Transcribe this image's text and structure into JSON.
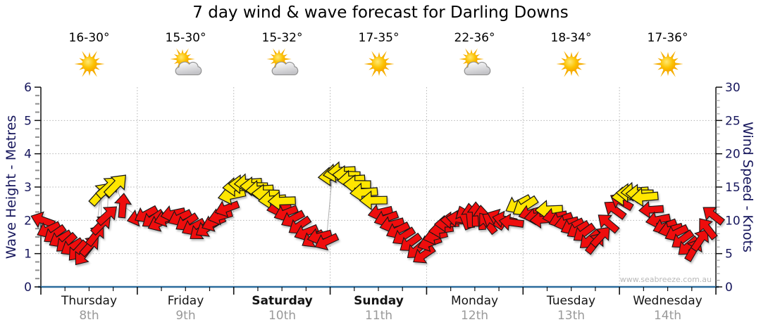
{
  "title": "7 day wind & wave forecast for Darling Downs",
  "watermark": "www.seabreeze.com.au",
  "days": [
    {
      "name": "Thursday",
      "date": "8th",
      "temp": "16-30°",
      "icon": "sunny",
      "bold": false
    },
    {
      "name": "Friday",
      "date": "9th",
      "temp": "15-30°",
      "icon": "partly-cloudy",
      "bold": false
    },
    {
      "name": "Saturday",
      "date": "10th",
      "temp": "15-32°",
      "icon": "partly-cloudy",
      "bold": true
    },
    {
      "name": "Sunday",
      "date": "11th",
      "temp": "17-35°",
      "icon": "sunny",
      "bold": true
    },
    {
      "name": "Monday",
      "date": "12th",
      "temp": "22-36°",
      "icon": "partly-cloudy",
      "bold": false
    },
    {
      "name": "Tuesday",
      "date": "13th",
      "temp": "18-34°",
      "icon": "sunny",
      "bold": false
    },
    {
      "name": "Wednesday",
      "date": "14th",
      "temp": "17-36°",
      "icon": "sunny",
      "bold": false
    }
  ],
  "chart_data": {
    "type": "scatter",
    "subtype": "wind-direction-arrows",
    "title": "7 day wind & wave forecast for Darling Downs",
    "categories": [
      "Thursday 8th",
      "Friday 9th",
      "Saturday 10th",
      "Sunday 11th",
      "Monday 12th",
      "Tuesday 13th",
      "Wednesday 14th"
    ],
    "left_axis": {
      "label": "Wave Height - Metres",
      "min": 0,
      "max": 6,
      "major_tick": 1,
      "minor_tick": 0.25
    },
    "right_axis": {
      "label": "Wind Speed - Knots",
      "min": 0,
      "max": 30,
      "major_tick": 5,
      "minor_tick": 1
    },
    "grid": {
      "style": "dotted",
      "horizontal_lines_metres": [
        1,
        2,
        3,
        4,
        5
      ],
      "vertical_lines_at_day_boundaries": true
    },
    "x_minor_ticks_per_day": 4,
    "legend": null,
    "colors": {
      "light_wind_arrow": "#ee1111",
      "strong_wind_arrow": "#ffe600",
      "arrow_outline": "#141414",
      "axis_text": "#16165c",
      "axis_line": "#111111",
      "x_axis_line": "#2a6b9c",
      "grid_line": "#b3b3b3",
      "minor_tick": "#8f8f8f",
      "connector_line": "#b0b0b0"
    },
    "point_format": [
      "day_index",
      "time_fraction_of_day",
      "wind_speed_knots",
      "direction_deg_ccw_from_east",
      "strength_r_light_y_strong"
    ],
    "points": [
      [
        0,
        0.02,
        10.0,
        160,
        "r"
      ],
      [
        0,
        0.08,
        8.6,
        205,
        "r"
      ],
      [
        0,
        0.14,
        7.9,
        215,
        "r"
      ],
      [
        0,
        0.2,
        7.2,
        210,
        "r"
      ],
      [
        0,
        0.26,
        6.6,
        222,
        "r"
      ],
      [
        0,
        0.32,
        6.0,
        212,
        "r"
      ],
      [
        0,
        0.38,
        5.4,
        228,
        "r"
      ],
      [
        0,
        0.44,
        4.8,
        232,
        "r"
      ],
      [
        0,
        0.51,
        6.2,
        48,
        "r"
      ],
      [
        0,
        0.57,
        7.8,
        52,
        "r"
      ],
      [
        0,
        0.62,
        14.0,
        48,
        "y"
      ],
      [
        0,
        0.63,
        9.4,
        45,
        "r"
      ],
      [
        0,
        0.69,
        10.8,
        42,
        "r"
      ],
      [
        0,
        0.7,
        15.0,
        42,
        "y"
      ],
      [
        0,
        0.78,
        15.3,
        46,
        "y"
      ],
      [
        0,
        0.85,
        12.2,
        85,
        "r"
      ],
      [
        1,
        0.02,
        10.4,
        195,
        "r"
      ],
      [
        1,
        0.09,
        10.9,
        208,
        "r"
      ],
      [
        1,
        0.16,
        10.2,
        215,
        "r"
      ],
      [
        1,
        0.23,
        9.6,
        205,
        "r"
      ],
      [
        1,
        0.3,
        10.3,
        198,
        "r"
      ],
      [
        1,
        0.37,
        11.0,
        192,
        "r"
      ],
      [
        1,
        0.44,
        10.4,
        205,
        "r"
      ],
      [
        1,
        0.51,
        9.7,
        213,
        "r"
      ],
      [
        1,
        0.58,
        9.0,
        208,
        "r"
      ],
      [
        1,
        0.65,
        8.4,
        218,
        "r"
      ],
      [
        1,
        0.72,
        8.8,
        212,
        "r"
      ],
      [
        1,
        0.79,
        9.6,
        203,
        "r"
      ],
      [
        1,
        0.86,
        10.6,
        196,
        "r"
      ],
      [
        1,
        0.93,
        11.8,
        200,
        "r"
      ],
      [
        1,
        0.98,
        13.8,
        192,
        "y"
      ],
      [
        2,
        0.03,
        15.0,
        183,
        "y"
      ],
      [
        2,
        0.09,
        15.4,
        178,
        "y"
      ],
      [
        2,
        0.15,
        15.6,
        184,
        "y"
      ],
      [
        2,
        0.21,
        15.1,
        179,
        "y"
      ],
      [
        2,
        0.27,
        14.6,
        184,
        "y"
      ],
      [
        2,
        0.33,
        14.0,
        179,
        "y"
      ],
      [
        2,
        0.4,
        13.1,
        185,
        "y"
      ],
      [
        2,
        0.47,
        11.9,
        192,
        "r"
      ],
      [
        2,
        0.5,
        12.9,
        182,
        "y"
      ],
      [
        2,
        0.54,
        11.1,
        202,
        "r"
      ],
      [
        2,
        0.61,
        10.2,
        208,
        "r"
      ],
      [
        2,
        0.68,
        9.2,
        214,
        "r"
      ],
      [
        2,
        0.75,
        8.2,
        202,
        "r"
      ],
      [
        2,
        0.82,
        7.2,
        212,
        "r"
      ],
      [
        2,
        0.89,
        7.6,
        194,
        "r"
      ],
      [
        2,
        0.96,
        6.8,
        205,
        "r"
      ],
      [
        3,
        0.02,
        16.6,
        184,
        "y"
      ],
      [
        3,
        0.07,
        17.1,
        189,
        "y"
      ],
      [
        3,
        0.12,
        17.4,
        183,
        "y"
      ],
      [
        3,
        0.17,
        16.8,
        178,
        "y"
      ],
      [
        3,
        0.22,
        16.1,
        184,
        "y"
      ],
      [
        3,
        0.28,
        15.4,
        179,
        "y"
      ],
      [
        3,
        0.35,
        14.2,
        184,
        "y"
      ],
      [
        3,
        0.45,
        13.0,
        181,
        "y"
      ],
      [
        3,
        0.52,
        11.2,
        193,
        "r"
      ],
      [
        3,
        0.58,
        10.3,
        200,
        "r"
      ],
      [
        3,
        0.64,
        9.4,
        195,
        "r"
      ],
      [
        3,
        0.7,
        8.5,
        206,
        "r"
      ],
      [
        3,
        0.76,
        7.6,
        212,
        "r"
      ],
      [
        3,
        0.83,
        6.6,
        216,
        "r"
      ],
      [
        3,
        0.9,
        5.6,
        221,
        "r"
      ],
      [
        3,
        0.97,
        4.8,
        214,
        "r"
      ],
      [
        4,
        0.03,
        6.6,
        200,
        "r"
      ],
      [
        4,
        0.09,
        7.6,
        194,
        "r"
      ],
      [
        4,
        0.15,
        8.6,
        188,
        "r"
      ],
      [
        4,
        0.21,
        9.5,
        183,
        "r"
      ],
      [
        4,
        0.27,
        10.0,
        178,
        "r"
      ],
      [
        4,
        0.33,
        10.2,
        172,
        "r"
      ],
      [
        4,
        0.39,
        10.4,
        112,
        "r"
      ],
      [
        4,
        0.45,
        10.7,
        96,
        "r"
      ],
      [
        4,
        0.51,
        10.9,
        90,
        "r"
      ],
      [
        4,
        0.57,
        10.4,
        94,
        "r"
      ],
      [
        4,
        0.63,
        9.6,
        128,
        "r"
      ],
      [
        4,
        0.69,
        9.9,
        148,
        "r"
      ],
      [
        4,
        0.75,
        10.4,
        158,
        "r"
      ],
      [
        4,
        0.81,
        10.1,
        168,
        "r"
      ],
      [
        4,
        0.88,
        9.7,
        172,
        "r"
      ],
      [
        4,
        0.95,
        12.4,
        208,
        "y"
      ],
      [
        5,
        0.02,
        12.1,
        213,
        "y"
      ],
      [
        5,
        0.08,
        11.1,
        196,
        "r"
      ],
      [
        5,
        0.14,
        10.6,
        189,
        "r"
      ],
      [
        5,
        0.2,
        10.1,
        184,
        "r"
      ],
      [
        5,
        0.27,
        11.6,
        182,
        "y"
      ],
      [
        5,
        0.33,
        10.6,
        190,
        "r"
      ],
      [
        5,
        0.39,
        10.1,
        200,
        "r"
      ],
      [
        5,
        0.45,
        9.6,
        194,
        "r"
      ],
      [
        5,
        0.51,
        9.1,
        206,
        "r"
      ],
      [
        5,
        0.57,
        8.6,
        211,
        "r"
      ],
      [
        5,
        0.63,
        8.1,
        216,
        "r"
      ],
      [
        5,
        0.69,
        7.1,
        221,
        "r"
      ],
      [
        5,
        0.75,
        6.6,
        52,
        "r"
      ],
      [
        5,
        0.81,
        7.6,
        47,
        "r"
      ],
      [
        5,
        0.88,
        9.6,
        140,
        "r"
      ],
      [
        5,
        0.95,
        11.6,
        144,
        "r"
      ],
      [
        6,
        0.02,
        12.8,
        150,
        "r"
      ],
      [
        6,
        0.06,
        13.6,
        184,
        "y"
      ],
      [
        6,
        0.11,
        14.1,
        179,
        "y"
      ],
      [
        6,
        0.16,
        14.3,
        184,
        "y"
      ],
      [
        6,
        0.21,
        14.0,
        180,
        "y"
      ],
      [
        6,
        0.26,
        13.5,
        185,
        "y"
      ],
      [
        6,
        0.33,
        11.6,
        184,
        "r"
      ],
      [
        6,
        0.4,
        10.1,
        191,
        "r"
      ],
      [
        6,
        0.47,
        9.1,
        201,
        "r"
      ],
      [
        6,
        0.53,
        8.6,
        195,
        "r"
      ],
      [
        6,
        0.59,
        8.1,
        206,
        "r"
      ],
      [
        6,
        0.65,
        7.1,
        216,
        "r"
      ],
      [
        6,
        0.71,
        6.1,
        221,
        "r"
      ],
      [
        6,
        0.77,
        5.6,
        60,
        "r"
      ],
      [
        6,
        0.84,
        7.1,
        56,
        "r"
      ],
      [
        6,
        0.91,
        8.8,
        128,
        "r"
      ],
      [
        6,
        0.97,
        10.8,
        142,
        "r"
      ]
    ]
  }
}
